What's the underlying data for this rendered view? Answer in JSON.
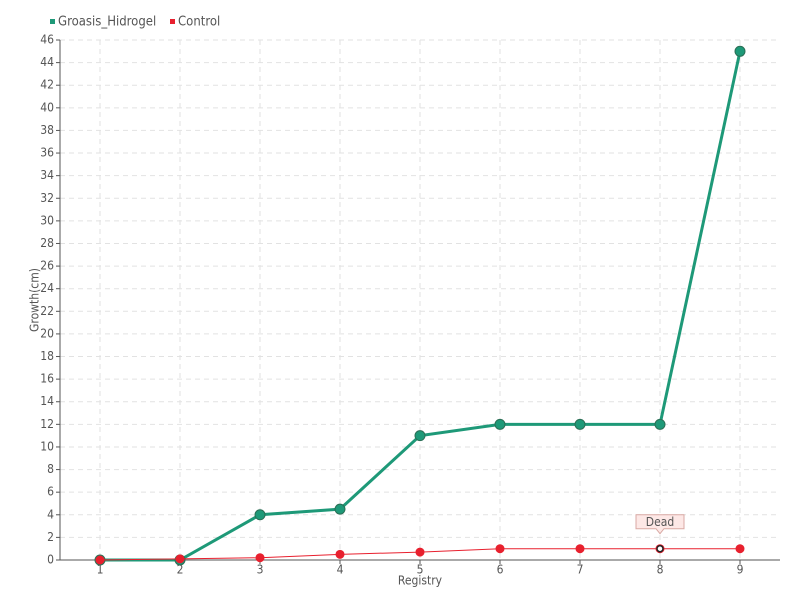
{
  "chart_data": {
    "type": "line",
    "x": [
      1,
      2,
      3,
      4,
      5,
      6,
      7,
      8,
      9
    ],
    "xlim": [
      0.5,
      9.5
    ],
    "xticks": [
      1,
      2,
      3,
      4,
      5,
      6,
      7,
      8,
      9
    ],
    "ylim": [
      0,
      46
    ],
    "yticks": [
      0,
      2,
      4,
      6,
      8,
      10,
      12,
      14,
      16,
      18,
      20,
      22,
      24,
      26,
      28,
      30,
      32,
      34,
      36,
      38,
      40,
      42,
      44,
      46
    ],
    "xlabel": "Registry",
    "ylabel": "Growth(cm)",
    "grid": true,
    "series": [
      {
        "name": "Groasis_Hidrogel",
        "color": "#1e9978",
        "values": [
          0,
          0,
          4,
          4.5,
          11,
          12,
          12,
          12,
          45
        ]
      },
      {
        "name": "Control",
        "color": "#e8202e",
        "values": [
          0,
          0.1,
          0.2,
          0.5,
          0.7,
          1,
          1,
          1,
          1
        ]
      }
    ],
    "annotations": [
      {
        "text": "Dead",
        "x": 8,
        "y": 1
      }
    ]
  }
}
